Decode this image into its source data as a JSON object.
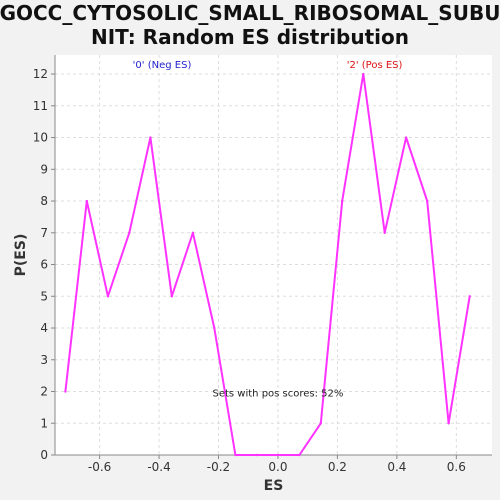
{
  "chart_data": {
    "type": "line",
    "title_line1": "GOCC_CYTOSOLIC_SMALL_RIBOSOMAL_SUBU",
    "title_line2": "NIT: Random ES distribution",
    "xlabel": "ES",
    "ylabel": "P(ES)",
    "xlim": [
      -0.75,
      0.72
    ],
    "ylim": [
      0,
      12.6
    ],
    "x_ticks": [
      -0.6,
      -0.4,
      -0.2,
      0.0,
      0.2,
      0.4,
      0.6
    ],
    "x_tick_labels": [
      "-0.6",
      "-0.4",
      "-0.2",
      "0.0",
      "0.2",
      "0.4",
      "0.6"
    ],
    "y_ticks": [
      0,
      1,
      2,
      3,
      4,
      5,
      6,
      7,
      8,
      9,
      10,
      11,
      12
    ],
    "y_tick_labels": [
      "0",
      "1",
      "2",
      "3",
      "4",
      "5",
      "6",
      "7",
      "8",
      "9",
      "10",
      "11",
      "12"
    ],
    "grid": true,
    "series": [
      {
        "color": "#ff33ff",
        "x": [
          -0.715,
          -0.643,
          -0.572,
          -0.5,
          -0.429,
          -0.357,
          -0.286,
          -0.214,
          -0.143,
          -0.071,
          0.0,
          0.072,
          0.144,
          0.216,
          0.287,
          0.359,
          0.431,
          0.502,
          0.574,
          0.645
        ],
        "y": [
          2,
          8,
          5,
          7,
          10,
          5,
          7,
          4,
          0,
          0,
          0,
          0,
          1,
          8,
          12,
          7,
          10,
          8,
          1,
          5
        ]
      }
    ],
    "annotations": {
      "neg_label": "'0' (Neg ES)",
      "neg_color": "#2222cc",
      "pos_label": "'2' (Pos ES)",
      "pos_color": "#dd1111",
      "center_text": "Sets with pos scores: 52%",
      "center_color": "#222222"
    },
    "colors": {
      "plot_background": "#ffffff",
      "page_background": "#f2f2f2",
      "grid": "#dddddd",
      "axis": "#888888"
    }
  }
}
